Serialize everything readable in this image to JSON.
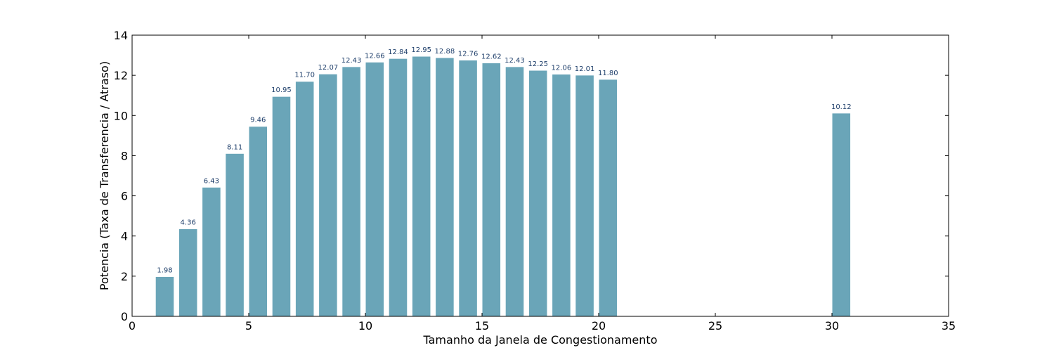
{
  "chart_data": {
    "type": "bar",
    "title": "",
    "xlabel": "Tamanho da Janela de Congestionamento",
    "ylabel": "Potencia (Taxa de Transferencia / Atraso)",
    "xlim": [
      0,
      35
    ],
    "ylim": [
      0,
      14
    ],
    "xticks": [
      0,
      5,
      10,
      15,
      20,
      25,
      30,
      35
    ],
    "yticks": [
      0,
      2,
      4,
      6,
      8,
      10,
      12,
      14
    ],
    "x": [
      1,
      2,
      3,
      4,
      5,
      6,
      7,
      8,
      9,
      10,
      11,
      12,
      13,
      14,
      15,
      16,
      17,
      18,
      19,
      20,
      30
    ],
    "values": [
      1.98,
      4.36,
      6.43,
      8.11,
      9.46,
      10.95,
      11.7,
      12.07,
      12.43,
      12.66,
      12.84,
      12.95,
      12.88,
      12.76,
      12.62,
      12.43,
      12.25,
      12.06,
      12.01,
      11.8,
      10.12
    ],
    "labels": [
      "1.98",
      "4.36",
      "6.43",
      "8.11",
      "9.46",
      "10.95",
      "11.70",
      "12.07",
      "12.43",
      "12.66",
      "12.84",
      "12.95",
      "12.88",
      "12.76",
      "12.62",
      "12.43",
      "12.25",
      "12.06",
      "12.01",
      "11.80",
      "10.12"
    ],
    "bar_color": "#6aa5b8",
    "label_color": "#1f3f6b",
    "grid": false,
    "legend": "none"
  }
}
